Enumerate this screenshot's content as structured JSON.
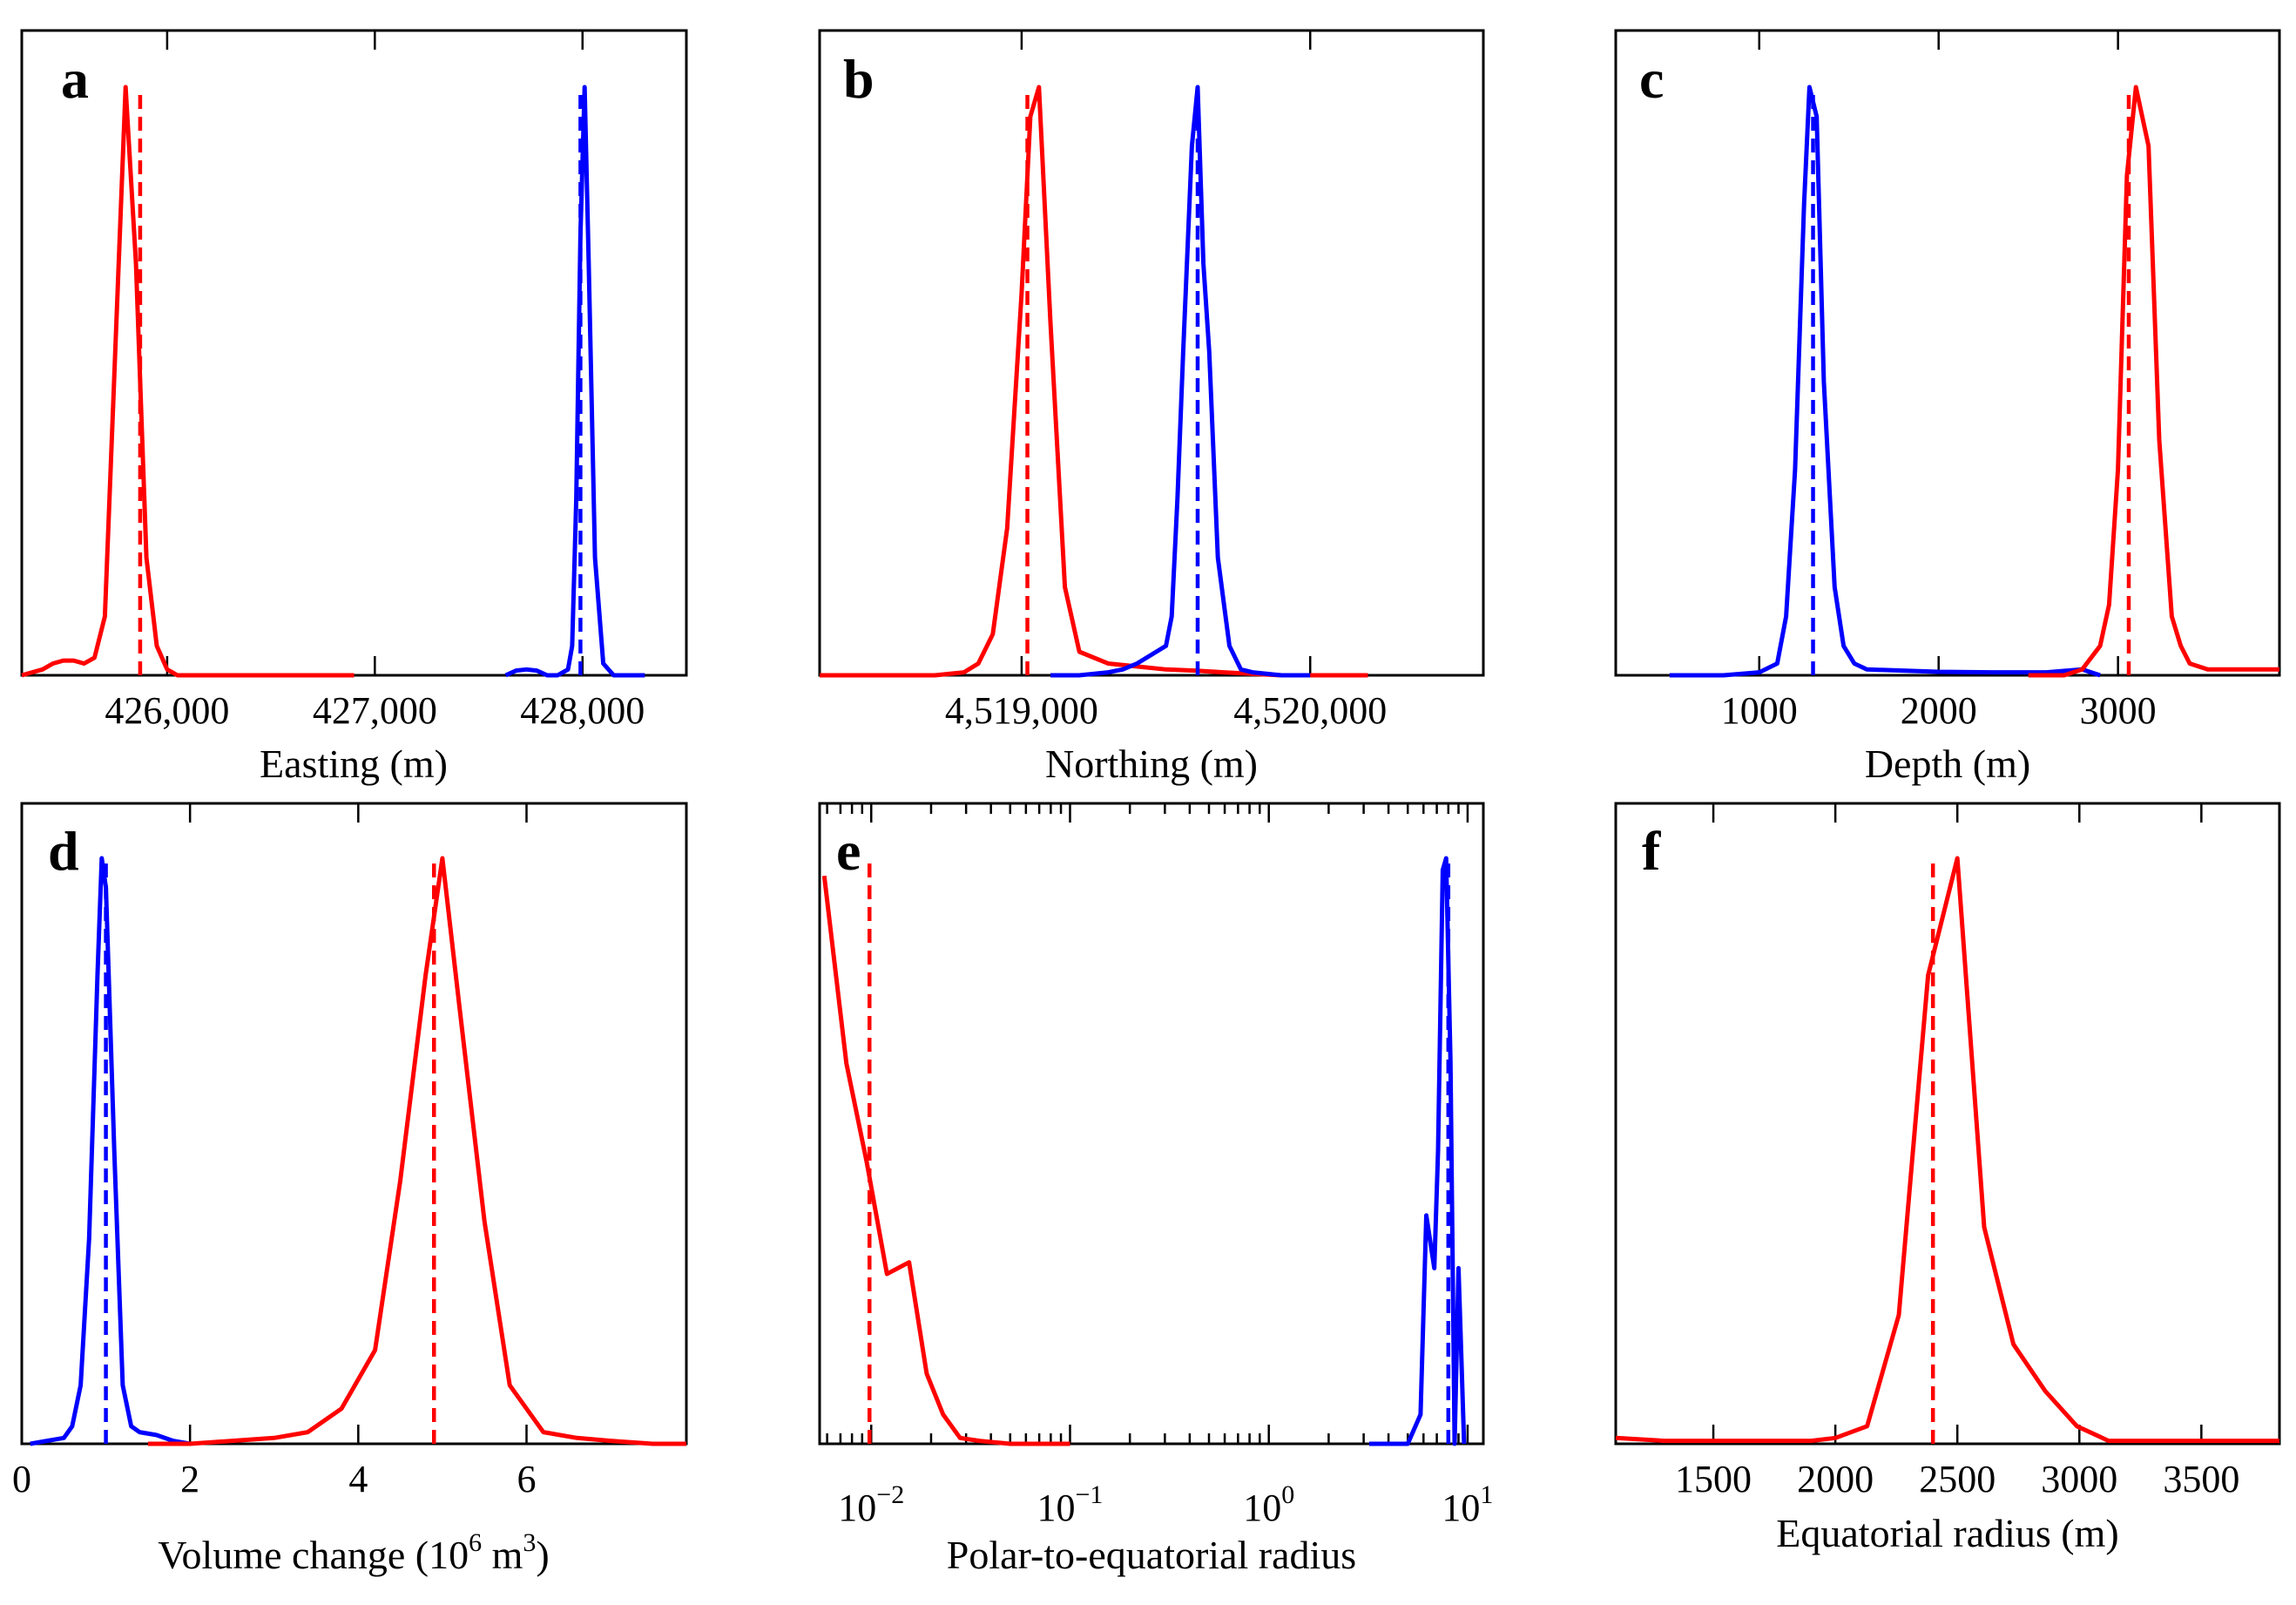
{
  "colors": {
    "red": "#ff0000",
    "blue": "#0000ff",
    "axis": "#000000"
  },
  "chart_data": [
    {
      "id": "a",
      "type": "line",
      "panel_letter": "a",
      "xlabel": "Easting (m)",
      "ylabel": "",
      "scale": "linear",
      "xlim": [
        425300,
        428500
      ],
      "ylim": [
        0,
        1
      ],
      "ticks": [
        426000,
        427000,
        428000
      ],
      "tick_labels": [
        "426,000",
        "427,000",
        "428,000"
      ],
      "series": [
        {
          "name": "red",
          "color": "#ff0000",
          "x": [
            425300,
            425350,
            425400,
            425450,
            425500,
            425550,
            425600,
            425650,
            425700,
            425750,
            425800,
            425850,
            425900,
            425950,
            426000,
            426050,
            426100,
            426150,
            426200,
            426300,
            426500,
            426900
          ],
          "y": [
            0,
            0.005,
            0.01,
            0.02,
            0.025,
            0.025,
            0.02,
            0.03,
            0.1,
            0.55,
            1.0,
            0.7,
            0.2,
            0.05,
            0.01,
            0,
            0,
            0,
            0,
            0,
            0,
            0
          ]
        },
        {
          "name": "blue",
          "color": "#0000ff",
          "x": [
            427630,
            427680,
            427730,
            427780,
            427830,
            427880,
            427930,
            427950,
            427970,
            427990,
            428010,
            428030,
            428060,
            428100,
            428150,
            428200,
            428260,
            428300
          ],
          "y": [
            0,
            0.008,
            0.01,
            0.008,
            0,
            0,
            0.01,
            0.05,
            0.3,
            0.75,
            1.0,
            0.7,
            0.2,
            0.02,
            0,
            0,
            0,
            0
          ]
        }
      ],
      "ref_lines": [
        {
          "color": "#ff0000",
          "x": 425870
        },
        {
          "color": "#0000ff",
          "x": 427990
        }
      ]
    },
    {
      "id": "b",
      "type": "line",
      "panel_letter": "b",
      "xlabel": "Northing (m)",
      "ylabel": "",
      "scale": "linear",
      "xlim": [
        4518300,
        4520600
      ],
      "ylim": [
        0,
        1
      ],
      "ticks": [
        4519000,
        4520000
      ],
      "tick_labels": [
        "4,519,000",
        "4,520,000"
      ],
      "series": [
        {
          "name": "red",
          "color": "#ff0000",
          "x": [
            4518300,
            4518700,
            4518800,
            4518850,
            4518900,
            4518950,
            4519000,
            4519030,
            4519060,
            4519100,
            4519150,
            4519200,
            4519300,
            4519400,
            4519500,
            4519600,
            4519700,
            4519900,
            4520100,
            4520200
          ],
          "y": [
            0,
            0,
            0.005,
            0.02,
            0.07,
            0.25,
            0.65,
            0.95,
            1.0,
            0.6,
            0.15,
            0.04,
            0.02,
            0.015,
            0.01,
            0.008,
            0.005,
            0,
            0,
            0
          ]
        },
        {
          "name": "blue",
          "color": "#0000ff",
          "x": [
            4519100,
            4519200,
            4519300,
            4519350,
            4519400,
            4519450,
            4519500,
            4519520,
            4519540,
            4519560,
            4519590,
            4519610,
            4519630,
            4519650,
            4519680,
            4519720,
            4519760,
            4519800,
            4519900,
            4520000
          ],
          "y": [
            0,
            0,
            0.005,
            0.01,
            0.02,
            0.035,
            0.05,
            0.1,
            0.3,
            0.55,
            0.9,
            1.0,
            0.7,
            0.55,
            0.2,
            0.05,
            0.01,
            0.005,
            0,
            0
          ]
        }
      ],
      "ref_lines": [
        {
          "color": "#ff0000",
          "x": 4519020
        },
        {
          "color": "#0000ff",
          "x": 4519610
        }
      ]
    },
    {
      "id": "c",
      "type": "line",
      "panel_letter": "c",
      "xlabel": "Depth (m)",
      "ylabel": "",
      "scale": "linear",
      "xlim": [
        200,
        3900
      ],
      "ylim": [
        0,
        1
      ],
      "ticks": [
        1000,
        2000,
        3000
      ],
      "tick_labels": [
        "1000",
        "2000",
        "3000"
      ],
      "series": [
        {
          "name": "blue",
          "color": "#0000ff",
          "x": [
            500,
            800,
            1000,
            1100,
            1150,
            1200,
            1250,
            1280,
            1320,
            1360,
            1420,
            1470,
            1530,
            1600,
            1800,
            2000,
            2300,
            2600,
            2800,
            2900
          ],
          "y": [
            0,
            0,
            0.005,
            0.02,
            0.1,
            0.35,
            0.8,
            1.0,
            0.95,
            0.5,
            0.15,
            0.05,
            0.02,
            0.01,
            0.008,
            0.006,
            0.005,
            0.005,
            0.01,
            0
          ]
        },
        {
          "name": "red",
          "color": "#ff0000",
          "x": [
            2500,
            2700,
            2800,
            2900,
            2950,
            3000,
            3050,
            3100,
            3170,
            3230,
            3300,
            3350,
            3400,
            3500,
            3700,
            3900
          ],
          "y": [
            0,
            0,
            0.01,
            0.05,
            0.12,
            0.35,
            0.85,
            1.0,
            0.9,
            0.4,
            0.1,
            0.05,
            0.02,
            0.01,
            0.01,
            0.01
          ]
        }
      ],
      "ref_lines": [
        {
          "color": "#0000ff",
          "x": 1300
        },
        {
          "color": "#ff0000",
          "x": 3060
        }
      ]
    },
    {
      "id": "d",
      "type": "line",
      "panel_letter": "d",
      "xlabel": "Volume change (10",
      "xlabel_sup1": "6",
      "xlabel_mid": " m",
      "xlabel_sup2": "3",
      "xlabel_end": ")",
      "ylabel": "",
      "scale": "linear",
      "xlim": [
        0,
        7.9
      ],
      "ylim": [
        0,
        1
      ],
      "ticks": [
        0,
        2,
        4,
        6
      ],
      "tick_labels": [
        "0",
        "2",
        "4",
        "6"
      ],
      "series": [
        {
          "name": "blue",
          "color": "#0000ff",
          "x": [
            0.1,
            0.3,
            0.5,
            0.6,
            0.7,
            0.8,
            0.9,
            0.95,
            1.0,
            1.1,
            1.2,
            1.3,
            1.4,
            1.6,
            1.8,
            2.0
          ],
          "y": [
            0,
            0.005,
            0.01,
            0.03,
            0.1,
            0.35,
            0.8,
            1.0,
            0.95,
            0.5,
            0.1,
            0.03,
            0.02,
            0.015,
            0.005,
            0
          ]
        },
        {
          "name": "red",
          "color": "#ff0000",
          "x": [
            1.5,
            2.0,
            2.5,
            3.0,
            3.4,
            3.8,
            4.2,
            4.5,
            4.8,
            5.0,
            5.2,
            5.5,
            5.8,
            6.2,
            6.6,
            7.0,
            7.5,
            7.9
          ],
          "y": [
            0,
            0,
            0.005,
            0.01,
            0.02,
            0.06,
            0.16,
            0.45,
            0.8,
            1.0,
            0.75,
            0.38,
            0.1,
            0.02,
            0.01,
            0.005,
            0,
            0
          ]
        }
      ],
      "ref_lines": [
        {
          "color": "#0000ff",
          "x": 1.0
        },
        {
          "color": "#ff0000",
          "x": 4.9
        }
      ]
    },
    {
      "id": "e",
      "type": "line",
      "panel_letter": "e",
      "xlabel": "Polar-to-equatorial radius",
      "ylabel": "",
      "scale": "log",
      "xlim": [
        0.0055,
        12
      ],
      "ylim": [
        0,
        1
      ],
      "ticks": [
        0.01,
        0.1,
        1,
        10
      ],
      "tick_labels_base": [
        "10",
        "10",
        "10",
        "10"
      ],
      "tick_labels_exp": [
        "−2",
        "−1",
        "0",
        "1"
      ],
      "series": [
        {
          "name": "red",
          "color": "#ff0000",
          "x": [
            0.0058,
            0.0075,
            0.0095,
            0.012,
            0.0155,
            0.019,
            0.023,
            0.028,
            0.035,
            0.05,
            0.1
          ],
          "y": [
            0.97,
            0.65,
            0.48,
            0.29,
            0.31,
            0.12,
            0.05,
            0.01,
            0.005,
            0,
            0
          ]
        },
        {
          "name": "blue",
          "color": "#0000ff",
          "x": [
            3.2,
            5.0,
            5.8,
            6.2,
            6.8,
            7.1,
            7.5,
            7.8,
            8.2,
            8.6,
            9.0,
            9.6
          ],
          "y": [
            0,
            0,
            0.05,
            0.39,
            0.3,
            0.5,
            0.98,
            1.0,
            0.65,
            0.0,
            0.3,
            0.0
          ]
        }
      ],
      "ref_lines": [
        {
          "color": "#ff0000",
          "x": 0.0098
        },
        {
          "color": "#0000ff",
          "x": 8.0
        }
      ]
    },
    {
      "id": "f",
      "type": "line",
      "panel_letter": "f",
      "xlabel": "Equatorial radius (m)",
      "ylabel": "",
      "scale": "linear",
      "xlim": [
        1100,
        3820
      ],
      "ylim": [
        0,
        1
      ],
      "ticks": [
        1500,
        2000,
        2500,
        3000,
        3500
      ],
      "tick_labels": [
        "1500",
        "2000",
        "2500",
        "3000",
        "3500"
      ],
      "series": [
        {
          "name": "red",
          "color": "#ff0000",
          "x": [
            1100,
            1300,
            1600,
            1900,
            2000,
            2130,
            2260,
            2380,
            2500,
            2610,
            2730,
            2860,
            2990,
            3120,
            3300,
            3600,
            3820
          ],
          "y": [
            0.01,
            0.005,
            0.005,
            0.005,
            0.01,
            0.03,
            0.22,
            0.8,
            1.0,
            0.37,
            0.17,
            0.09,
            0.03,
            0.005,
            0.005,
            0.005,
            0.005
          ]
        }
      ],
      "ref_lines": [
        {
          "color": "#ff0000",
          "x": 2400
        }
      ]
    }
  ]
}
